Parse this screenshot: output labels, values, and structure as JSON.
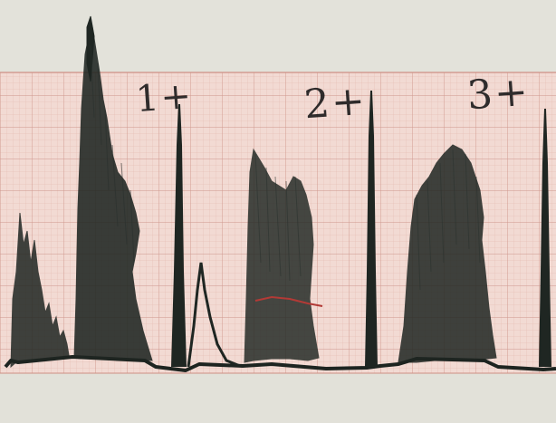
{
  "labels": [
    "1+",
    "2+",
    "3+"
  ],
  "colors": {
    "paper": "#e7e5dc",
    "grid_band": "#f1d6cf",
    "grid_line": "#d4a79c",
    "trace": "#1e2522",
    "red_mark": "#b23a36"
  }
}
